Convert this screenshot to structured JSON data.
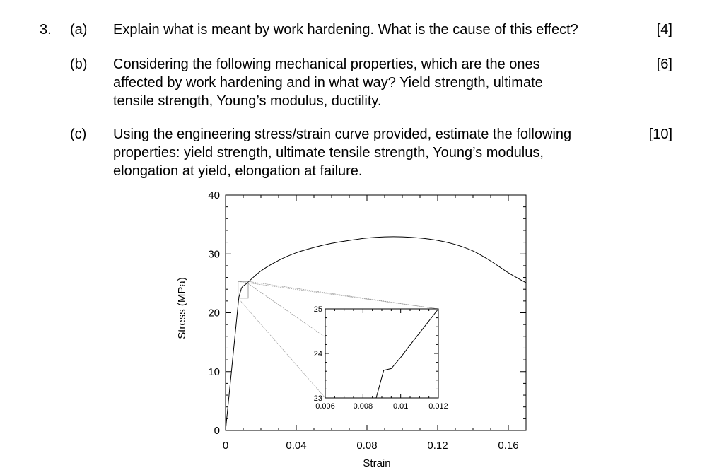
{
  "question": {
    "number": "3.",
    "parts": [
      {
        "label": "(a)",
        "lines": [
          "Explain what is meant by work hardening. What is the cause of this effect?"
        ],
        "marks": "[4]"
      },
      {
        "label": "(b)",
        "lines": [
          "Considering the following mechanical properties, which are the ones",
          "affected by work hardening and in what way? Yield strength, ultimate",
          "tensile strength, Young’s modulus, ductility."
        ],
        "marks": "[6]"
      },
      {
        "label": "(c)",
        "lines": [
          "Using the engineering stress/strain curve provided, estimate the following",
          "properties: yield strength, ultimate tensile strength, Young’s modulus,",
          "elongation at yield, elongation at failure."
        ],
        "marks": "[10]"
      }
    ]
  },
  "chart_data": {
    "type": "line",
    "xlabel": "Strain",
    "ylabel": "Stress (MPa)",
    "xlim": [
      0,
      0.17
    ],
    "ylim": [
      0,
      40
    ],
    "xticks": [
      "0",
      "0.04",
      "0.08",
      "0.12",
      "0.16"
    ],
    "xtick_values": [
      0,
      0.04,
      0.08,
      0.12,
      0.16
    ],
    "yticks": [
      "0",
      "10",
      "20",
      "30",
      "40"
    ],
    "ytick_values": [
      0,
      10,
      20,
      30,
      40
    ],
    "grid": false,
    "series": [
      {
        "x": [
          0,
          0.0075,
          0.009,
          0.012,
          0.02,
          0.03,
          0.04,
          0.05,
          0.06,
          0.07,
          0.08,
          0.09,
          0.1,
          0.11,
          0.12,
          0.13,
          0.14,
          0.15,
          0.16,
          0.17
        ],
        "y": [
          0,
          22.6,
          24.2,
          25.0,
          27.1,
          28.9,
          30.2,
          31.1,
          31.8,
          32.3,
          32.7,
          32.9,
          32.9,
          32.7,
          32.3,
          31.6,
          30.5,
          28.8,
          26.8,
          25.1
        ]
      }
    ],
    "inset": {
      "xlim": [
        0.006,
        0.012
      ],
      "ylim": [
        23,
        25
      ],
      "xticks": [
        "0.006",
        "0.008",
        "0.01",
        "0.012"
      ],
      "xtick_values": [
        0.006,
        0.008,
        0.01,
        0.012
      ],
      "yticks": [
        "23",
        "24",
        "25"
      ],
      "ytick_values": [
        23,
        24,
        25
      ],
      "series": [
        {
          "x": [
            0.0087,
            0.0091,
            0.0095,
            0.01,
            0.0105,
            0.011,
            0.0115,
            0.012
          ],
          "y": [
            23.0,
            23.62,
            23.66,
            23.91,
            24.19,
            24.46,
            24.73,
            25.0
          ]
        }
      ],
      "zoom_region": {
        "x": [
          0.0075,
          0.012
        ],
        "y": [
          22.6,
          25.2
        ]
      }
    }
  }
}
